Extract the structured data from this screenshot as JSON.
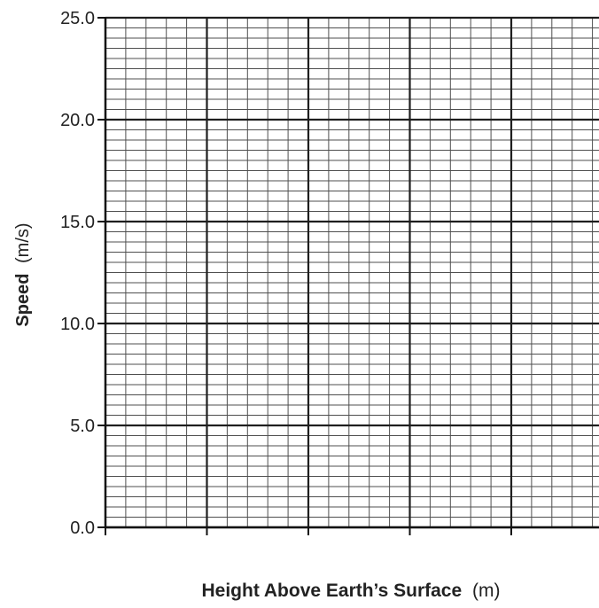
{
  "chart_data": {
    "type": "scatter",
    "title": "",
    "xlabel": {
      "main": "Height Above Earth’s Surface",
      "unit": "(m)"
    },
    "ylabel": {
      "main": "Speed",
      "unit": "(m/s)"
    },
    "ylim": [
      0,
      25
    ],
    "yticks": [
      "0.0",
      "5.0",
      "10.0",
      "15.0",
      "20.0",
      "25.0"
    ],
    "xticks": [
      "",
      "",
      "",
      "",
      ""
    ],
    "grid": true,
    "series": []
  }
}
